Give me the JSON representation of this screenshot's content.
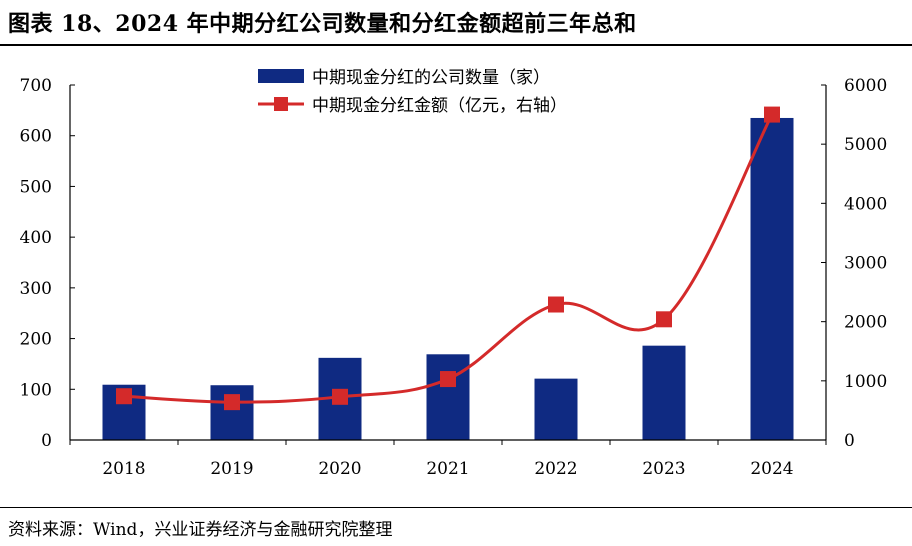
{
  "title": "图表 18、2024 年中期分红公司数量和分红金额超前三年总和",
  "source": "资料来源：Wind，兴业证券经济与金融研究院整理",
  "colors": {
    "bar": "#0f2a82",
    "line": "#d42a2a",
    "rule": "#000000"
  },
  "chart_data": {
    "type": "bar",
    "categories": [
      "2018",
      "2019",
      "2020",
      "2021",
      "2022",
      "2023",
      "2024"
    ],
    "series": [
      {
        "name": "中期现金分红的公司数量（家）",
        "type": "bar",
        "axis": "left",
        "values": [
          109,
          108,
          162,
          169,
          121,
          186,
          635
        ]
      },
      {
        "name": "中期现金分红金额（亿元，右轴）",
        "type": "line",
        "axis": "right",
        "values": [
          740,
          640,
          730,
          1030,
          2290,
          2040,
          5500
        ]
      }
    ],
    "ylim_left": [
      0,
      700
    ],
    "yticks_left": [
      "0",
      "100",
      "200",
      "300",
      "400",
      "500",
      "600",
      "700"
    ],
    "ylim_right": [
      0,
      6000
    ],
    "yticks_right": [
      "0",
      "1000",
      "2000",
      "3000",
      "4000",
      "5000",
      "6000"
    ],
    "legend_position": "top-center",
    "grid": false
  }
}
